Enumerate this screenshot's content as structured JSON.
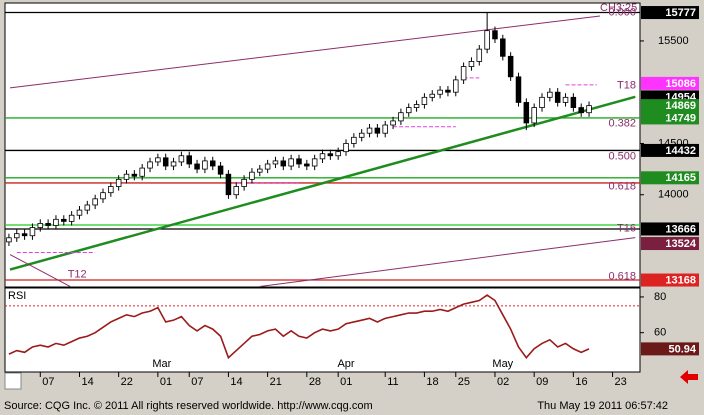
{
  "chart_data": {
    "type": "candlestick",
    "header_label": "CH3:25",
    "xlim": [
      -0.5,
      80.5
    ],
    "ylim": [
      13100,
      15870
    ],
    "yticks": [
      14000,
      14500,
      15500
    ],
    "xticks": [
      {
        "value": 4,
        "label": "07"
      },
      {
        "value": 9,
        "label": "14"
      },
      {
        "value": 14,
        "label": "22"
      },
      {
        "value": 19,
        "label": "01"
      },
      {
        "value": 23,
        "label": "07"
      },
      {
        "value": 28,
        "label": "14"
      },
      {
        "value": 33,
        "label": "21"
      },
      {
        "value": 38,
        "label": "28"
      },
      {
        "value": 42,
        "label": "01"
      },
      {
        "value": 48,
        "label": "11"
      },
      {
        "value": 53,
        "label": "18"
      },
      {
        "value": 57,
        "label": "25"
      },
      {
        "value": 62,
        "label": "02"
      },
      {
        "value": 67,
        "label": "09"
      },
      {
        "value": 72,
        "label": "16"
      },
      {
        "value": 77,
        "label": "23"
      }
    ],
    "months": [
      {
        "value": 19.5,
        "label": "Mar"
      },
      {
        "value": 43,
        "label": "Apr"
      },
      {
        "value": 63,
        "label": "May"
      }
    ],
    "up_color": "#ffffff",
    "down_color": "#000000",
    "ohlc": [
      [
        13540,
        13620,
        13500,
        13580
      ],
      [
        13580,
        13660,
        13540,
        13620
      ],
      [
        13620,
        13660,
        13560,
        13600
      ],
      [
        13600,
        13720,
        13560,
        13680
      ],
      [
        13680,
        13760,
        13640,
        13720
      ],
      [
        13720,
        13760,
        13660,
        13700
      ],
      [
        13700,
        13800,
        13660,
        13760
      ],
      [
        13760,
        13800,
        13700,
        13740
      ],
      [
        13740,
        13840,
        13700,
        13800
      ],
      [
        13800,
        13890,
        13760,
        13850
      ],
      [
        13850,
        13940,
        13810,
        13900
      ],
      [
        13900,
        14000,
        13860,
        13960
      ],
      [
        13960,
        14060,
        13920,
        14020
      ],
      [
        14020,
        14120,
        13980,
        14080
      ],
      [
        14080,
        14190,
        14040,
        14150
      ],
      [
        14150,
        14240,
        14110,
        14200
      ],
      [
        14200,
        14240,
        14140,
        14180
      ],
      [
        14180,
        14300,
        14140,
        14260
      ],
      [
        14260,
        14360,
        14220,
        14320
      ],
      [
        14320,
        14400,
        14280,
        14360
      ],
      [
        14360,
        14400,
        14240,
        14280
      ],
      [
        14280,
        14360,
        14240,
        14320
      ],
      [
        14320,
        14420,
        14280,
        14380
      ],
      [
        14380,
        14420,
        14260,
        14300
      ],
      [
        14300,
        14340,
        14210,
        14250
      ],
      [
        14250,
        14370,
        14210,
        14330
      ],
      [
        14330,
        14370,
        14240,
        14280
      ],
      [
        14280,
        14320,
        14160,
        14200
      ],
      [
        14200,
        14240,
        13960,
        14000
      ],
      [
        14000,
        14120,
        13960,
        14080
      ],
      [
        14080,
        14190,
        14040,
        14150
      ],
      [
        14150,
        14260,
        14110,
        14220
      ],
      [
        14220,
        14290,
        14180,
        14250
      ],
      [
        14250,
        14340,
        14210,
        14300
      ],
      [
        14300,
        14370,
        14260,
        14330
      ],
      [
        14330,
        14370,
        14240,
        14280
      ],
      [
        14280,
        14390,
        14240,
        14350
      ],
      [
        14350,
        14390,
        14260,
        14300
      ],
      [
        14300,
        14340,
        14240,
        14280
      ],
      [
        14280,
        14390,
        14240,
        14350
      ],
      [
        14350,
        14440,
        14310,
        14400
      ],
      [
        14400,
        14440,
        14340,
        14380
      ],
      [
        14380,
        14460,
        14340,
        14420
      ],
      [
        14420,
        14540,
        14380,
        14500
      ],
      [
        14500,
        14600,
        14460,
        14560
      ],
      [
        14560,
        14640,
        14520,
        14600
      ],
      [
        14600,
        14690,
        14560,
        14650
      ],
      [
        14650,
        14690,
        14560,
        14600
      ],
      [
        14600,
        14720,
        14560,
        14680
      ],
      [
        14680,
        14760,
        14640,
        14720
      ],
      [
        14720,
        14840,
        14680,
        14800
      ],
      [
        14800,
        14890,
        14760,
        14850
      ],
      [
        14850,
        14920,
        14810,
        14880
      ],
      [
        14880,
        14990,
        14840,
        14950
      ],
      [
        14950,
        15020,
        14910,
        14980
      ],
      [
        14980,
        15060,
        14940,
        15020
      ],
      [
        15020,
        15060,
        14960,
        15000
      ],
      [
        15000,
        15160,
        14960,
        15120
      ],
      [
        15120,
        15290,
        15080,
        15250
      ],
      [
        15250,
        15340,
        15210,
        15300
      ],
      [
        15300,
        15460,
        15260,
        15420
      ],
      [
        15420,
        15777,
        15380,
        15600
      ],
      [
        15600,
        15640,
        15480,
        15520
      ],
      [
        15520,
        15560,
        15310,
        15350
      ],
      [
        15350,
        15390,
        15110,
        15150
      ],
      [
        15150,
        15190,
        14860,
        14900
      ],
      [
        14900,
        14940,
        14630,
        14700
      ],
      [
        14700,
        14890,
        14660,
        14850
      ],
      [
        14850,
        14990,
        14810,
        14950
      ],
      [
        14950,
        15040,
        14910,
        15000
      ],
      [
        15000,
        15040,
        14860,
        14900
      ],
      [
        14900,
        14990,
        14860,
        14950
      ],
      [
        14950,
        14990,
        14810,
        14850
      ],
      [
        14850,
        14890,
        14760,
        14800
      ],
      [
        14800,
        14909,
        14760,
        14869
      ]
    ],
    "levels": [
      {
        "value": 15777,
        "color": "#000000"
      },
      {
        "value": 14749,
        "color": "#22aa22"
      },
      {
        "value": 14432,
        "color": "#000000"
      },
      {
        "value": 14165,
        "color": "#22aa22"
      },
      {
        "value": 14115,
        "color": "#cc2222"
      },
      {
        "value": 13705,
        "color": "#22cc22"
      },
      {
        "value": 13666,
        "color": "#000000"
      },
      {
        "value": 13168,
        "color": "#cc2222"
      }
    ],
    "annotations": [
      {
        "text": "0.000",
        "x": 80,
        "y": 15777
      },
      {
        "text": "T18",
        "x": 80,
        "y": 15062
      },
      {
        "text": "0.382",
        "x": 80,
        "y": 14692
      },
      {
        "text": "0.500",
        "x": 80,
        "y": 14370
      },
      {
        "text": "0.618",
        "x": 80,
        "y": 14078
      },
      {
        "text": "T16",
        "x": 80,
        "y": 13669
      },
      {
        "text": "0.618",
        "x": 80,
        "y": 13202
      },
      {
        "text": "T12",
        "x": 7.5,
        "y": 13222
      }
    ],
    "pivot_lines": [
      {
        "x": [
          1,
          11
        ],
        "y": 13436
      },
      {
        "x": [
          29,
          37
        ],
        "y": 14117
      },
      {
        "x": [
          49,
          57
        ],
        "y": 14663
      },
      {
        "x": [
          58,
          60
        ],
        "y": 15140
      },
      {
        "x": [
          71,
          75
        ],
        "y": 15072
      }
    ],
    "trendlines": [
      {
        "from": [
          0.14,
          13270
        ],
        "to": [
          79.9,
          14955
        ],
        "color": "#1e8c1e",
        "width": 2.5
      },
      {
        "from": [
          0.14,
          15042
        ],
        "to": [
          75.4,
          15743
        ],
        "color": "#8b2d6b",
        "width": 1
      },
      {
        "from": [
          32,
          13105
        ],
        "to": [
          79.9,
          13582
        ],
        "color": "#8b2d6b",
        "width": 1
      },
      {
        "from": [
          0.14,
          13416
        ],
        "to": [
          7.8,
          13105
        ],
        "color": "#8b2d6b",
        "width": 1
      }
    ],
    "price_boxes": [
      {
        "value": 15777,
        "bg": "#000000",
        "fg": "#ffffff"
      },
      {
        "value": 15086,
        "bg": "#ff33ff",
        "fg": "#ffffff"
      },
      {
        "value": 14954,
        "bg": "#000000",
        "fg": "#ffffff"
      },
      {
        "value": 14869,
        "bg": "#1e8c1e",
        "fg": "#ffffff"
      },
      {
        "value": 14749,
        "bg": "#1e8c1e",
        "fg": "#ffffff"
      },
      {
        "value": 14432,
        "bg": "#000000",
        "fg": "#ffffff"
      },
      {
        "value": 14165,
        "bg": "#1e8c1e",
        "fg": "#ffffff"
      },
      {
        "value": 13666,
        "bg": "#000000",
        "fg": "#ffffff"
      },
      {
        "value": 13524,
        "bg": "#7a1f3d",
        "fg": "#ffffff"
      },
      {
        "value": 13168,
        "bg": "#dd2222",
        "fg": "#ffffff"
      }
    ],
    "rsi": {
      "label": "RSI",
      "color": "#9b1b1b",
      "ylim": [
        38,
        85
      ],
      "yticks": [
        60,
        80
      ],
      "reference": 75,
      "values": [
        48,
        50,
        49,
        52,
        53,
        52,
        54,
        53,
        55,
        57,
        58,
        60,
        63,
        66,
        68,
        70,
        69,
        71,
        72,
        74,
        66,
        67,
        69,
        64,
        61,
        64,
        62,
        58,
        46,
        50,
        54,
        58,
        59,
        61,
        62,
        58,
        61,
        58,
        57,
        60,
        62,
        61,
        62,
        65,
        66,
        67,
        68,
        66,
        68,
        69,
        70,
        71,
        71,
        72,
        72,
        73,
        72,
        74,
        76,
        77,
        78,
        81,
        78,
        70,
        62,
        52,
        46,
        51,
        54,
        56,
        52,
        54,
        51,
        49,
        50.94
      ]
    }
  },
  "footer": {
    "source": "Source: CQG Inc. © 2011 All rights reserved worldwide. http://www.cqg.com",
    "timestamp": "Thu May 19 2011 06:57:42"
  }
}
